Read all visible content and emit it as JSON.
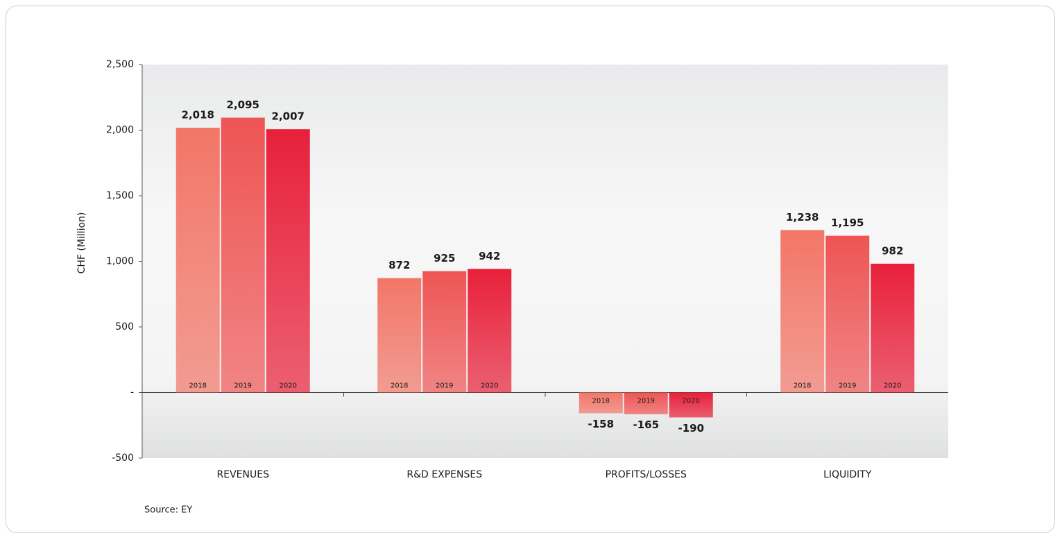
{
  "chart_data": {
    "type": "bar",
    "ylabel": "CHF (Million)",
    "source": "Source: EY",
    "categories": [
      "REVENUES",
      "R&D EXPENSES",
      "PROFITS/LOSSES",
      "LIQUIDITY"
    ],
    "series": [
      {
        "name": "2018",
        "color": "#f27668",
        "values": [
          2018,
          872,
          -158,
          1238
        ],
        "value_labels": [
          "2,018",
          "872",
          "-158",
          "1,238"
        ]
      },
      {
        "name": "2019",
        "color": "#ee5554",
        "values": [
          2095,
          925,
          -165,
          1195
        ],
        "value_labels": [
          "2,095",
          "925",
          "-165",
          "1,195"
        ]
      },
      {
        "name": "2020",
        "color": "#e8203a",
        "values": [
          2007,
          942,
          -190,
          982
        ],
        "value_labels": [
          "2,007",
          "942",
          "-190",
          "982"
        ]
      }
    ],
    "ylim": [
      -500,
      2500
    ],
    "yticks": [
      -500,
      {
        "value": 0,
        "label": "-"
      },
      500,
      {
        "value": 1000,
        "label": "1,000"
      },
      {
        "value": 1500,
        "label": "1,500"
      },
      {
        "value": 2000,
        "label": "2,000"
      },
      {
        "value": 2500,
        "label": "2,500"
      }
    ]
  }
}
